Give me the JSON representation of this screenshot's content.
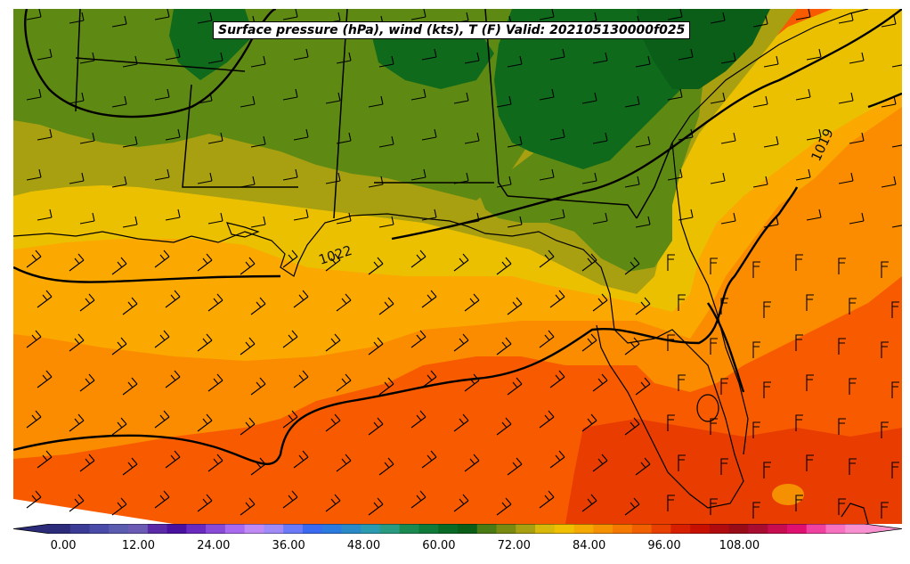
{
  "title": "Surface pressure (hPa), wind (kts), T (F) Valid: 202105130000f025",
  "isobar_labels": [
    "1022",
    "1019"
  ],
  "colorbar": {
    "ticks": [
      "0.00",
      "12.00",
      "24.00",
      "36.00",
      "48.00",
      "60.00",
      "72.00",
      "84.00",
      "96.00",
      "108.00"
    ],
    "min": -2,
    "max": 128,
    "colors": [
      "#2b2b7a",
      "#3b3b96",
      "#4a4aa8",
      "#5b5bb0",
      "#6b5bb5",
      "#5a2aa8",
      "#4a10a0",
      "#6a2ac0",
      "#8a4ad8",
      "#aa6af0",
      "#c08af5",
      "#a08af8",
      "#6a7af8",
      "#3a6af0",
      "#2a7ae0",
      "#2a8ac8",
      "#2a9ab0",
      "#2a9a80",
      "#1a8a50",
      "#0f7a3a",
      "#0a6a25",
      "#0a5e18",
      "#4a7a14",
      "#7a8a10",
      "#a8a010",
      "#d8b808",
      "#f0c000",
      "#f5a800",
      "#f59000",
      "#f57800",
      "#f06000",
      "#e84000",
      "#d82000",
      "#c81000",
      "#b00c10",
      "#980c18",
      "#a80c30",
      "#c80c50",
      "#e01070",
      "#f040a0",
      "#f870c0",
      "#f890d0"
    ]
  },
  "legend_colors": {
    "temp_62": "#5e8a14",
    "temp_58": "#0f6a1c",
    "temp_66": "#a8a010",
    "temp_70": "#ebc000",
    "temp_74": "#fba800",
    "temp_78": "#fb8c00",
    "temp_82": "#f85a00",
    "temp_86": "#e83c00",
    "isobar": "#000000",
    "coast": "#000000"
  }
}
